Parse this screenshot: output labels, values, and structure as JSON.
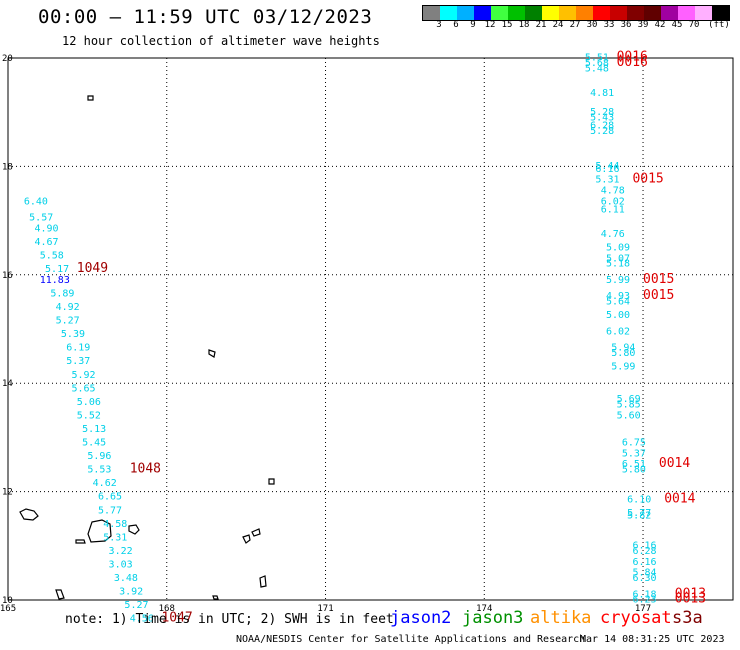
{
  "title": "00:00 — 11:59 UTC 03/12/2023",
  "subtitle": "12 hour collection of altimeter wave heights",
  "legend": {
    "colors": [
      "#808080",
      "#00ffff",
      "#00b0ff",
      "#0000ff",
      "#40ff40",
      "#00c000",
      "#008000",
      "#ffff00",
      "#ffc000",
      "#ff8000",
      "#ff0000",
      "#c80000",
      "#800000",
      "#600000",
      "#a000a0",
      "#ff60ff",
      "#ffb0ff",
      "#000000"
    ],
    "labels": [
      "3",
      "6",
      "9",
      "12",
      "15",
      "18",
      "21",
      "24",
      "27",
      "30",
      "33",
      "36",
      "39",
      "42",
      "45",
      "70",
      "(ft)"
    ]
  },
  "axes": {
    "lon_ticks": [
      "165",
      "168",
      "171",
      "174",
      "177"
    ],
    "lat_ticks": [
      "20",
      "18",
      "16",
      "14",
      "12",
      "10"
    ]
  },
  "note": "note: 1) Time is in UTC; 2) SWH is in feet",
  "satellites": [
    {
      "name": "jason2",
      "color": "#0000ff"
    },
    {
      "name": "jason3",
      "color": "#009000"
    },
    {
      "name": "altika",
      "color": "#ff9000"
    },
    {
      "name": "cryosat",
      "color": "#ff0000"
    },
    {
      "name": "s3a",
      "color": "#800000"
    }
  ],
  "credit": "NOAA/NESDIS Center for Satellite Applications and Research",
  "timestamp": "Mar 14 08:31:25 UTC 2023",
  "colors": {
    "cyan": "#00d0e8",
    "red": "#e00000",
    "darkred": "#a00000",
    "blue": "#0000ff"
  },
  "track_west": [
    {
      "lon": 165.3,
      "lat": 17.3,
      "v": "6.40"
    },
    {
      "lon": 165.4,
      "lat": 17.0,
      "v": "5.57"
    },
    {
      "lon": 165.5,
      "lat": 16.8,
      "v": "4.90"
    },
    {
      "lon": 165.5,
      "lat": 16.55,
      "v": "4.67"
    },
    {
      "lon": 165.6,
      "lat": 16.3,
      "v": "5.58"
    },
    {
      "lon": 165.7,
      "lat": 16.05,
      "v": "5.17"
    },
    {
      "lon": 165.6,
      "lat": 15.85,
      "v": "11.83",
      "c": "blue"
    },
    {
      "lon": 165.8,
      "lat": 15.6,
      "v": "5.89"
    },
    {
      "lon": 165.9,
      "lat": 15.35,
      "v": "4.92"
    },
    {
      "lon": 165.9,
      "lat": 15.1,
      "v": "5.27"
    },
    {
      "lon": 166.0,
      "lat": 14.85,
      "v": "5.39"
    },
    {
      "lon": 166.1,
      "lat": 14.6,
      "v": "6.19"
    },
    {
      "lon": 166.1,
      "lat": 14.35,
      "v": "5.37"
    },
    {
      "lon": 166.2,
      "lat": 14.1,
      "v": "5.92"
    },
    {
      "lon": 166.2,
      "lat": 13.85,
      "v": "5.65"
    },
    {
      "lon": 166.3,
      "lat": 13.6,
      "v": "5.06"
    },
    {
      "lon": 166.3,
      "lat": 13.35,
      "v": "5.52"
    },
    {
      "lon": 166.4,
      "lat": 13.1,
      "v": "5.13"
    },
    {
      "lon": 166.4,
      "lat": 12.85,
      "v": "5.45"
    },
    {
      "lon": 166.5,
      "lat": 12.6,
      "v": "5.96"
    },
    {
      "lon": 166.5,
      "lat": 12.35,
      "v": "5.53"
    },
    {
      "lon": 166.6,
      "lat": 12.1,
      "v": "4.62"
    },
    {
      "lon": 166.7,
      "lat": 11.85,
      "v": "6.65"
    },
    {
      "lon": 166.7,
      "lat": 11.6,
      "v": "5.77"
    },
    {
      "lon": 166.8,
      "lat": 11.35,
      "v": "4.58"
    },
    {
      "lon": 166.8,
      "lat": 11.1,
      "v": "5.31"
    },
    {
      "lon": 166.9,
      "lat": 10.85,
      "v": "3.22"
    },
    {
      "lon": 166.9,
      "lat": 10.6,
      "v": "3.03"
    },
    {
      "lon": 167.0,
      "lat": 10.35,
      "v": "3.48"
    },
    {
      "lon": 167.1,
      "lat": 10.1,
      "v": "3.92"
    },
    {
      "lon": 167.2,
      "lat": 9.85,
      "v": "5.27"
    },
    {
      "lon": 167.3,
      "lat": 9.6,
      "v": "4.56"
    }
  ],
  "track_east": [
    {
      "lon": 175.9,
      "lat": 19.95,
      "v": "5.51"
    },
    {
      "lon": 175.9,
      "lat": 19.85,
      "v": "5.68"
    },
    {
      "lon": 175.9,
      "lat": 19.75,
      "v": "5.48"
    },
    {
      "lon": 176.0,
      "lat": 19.3,
      "v": "4.81"
    },
    {
      "lon": 176.0,
      "lat": 18.95,
      "v": "5.28"
    },
    {
      "lon": 176.0,
      "lat": 18.85,
      "v": "5.43"
    },
    {
      "lon": 176.0,
      "lat": 18.7,
      "v": "6.28"
    },
    {
      "lon": 176.0,
      "lat": 18.6,
      "v": "5.28"
    },
    {
      "lon": 176.1,
      "lat": 17.95,
      "v": "5.44"
    },
    {
      "lon": 176.1,
      "lat": 17.9,
      "v": "6.16"
    },
    {
      "lon": 176.1,
      "lat": 17.7,
      "v": "5.31"
    },
    {
      "lon": 176.2,
      "lat": 17.5,
      "v": "4.78"
    },
    {
      "lon": 176.2,
      "lat": 17.3,
      "v": "6.02"
    },
    {
      "lon": 176.2,
      "lat": 17.15,
      "v": "6.11"
    },
    {
      "lon": 176.2,
      "lat": 16.7,
      "v": "4.76"
    },
    {
      "lon": 176.3,
      "lat": 16.45,
      "v": "5.09"
    },
    {
      "lon": 176.3,
      "lat": 16.25,
      "v": "5.07"
    },
    {
      "lon": 176.3,
      "lat": 16.15,
      "v": "5.18"
    },
    {
      "lon": 176.3,
      "lat": 15.85,
      "v": "5.99"
    },
    {
      "lon": 176.3,
      "lat": 15.55,
      "v": "4.93"
    },
    {
      "lon": 176.3,
      "lat": 15.45,
      "v": "5.64"
    },
    {
      "lon": 176.3,
      "lat": 15.2,
      "v": "5.00"
    },
    {
      "lon": 176.3,
      "lat": 14.9,
      "v": "6.02"
    },
    {
      "lon": 176.4,
      "lat": 14.6,
      "v": "5.94"
    },
    {
      "lon": 176.4,
      "lat": 14.5,
      "v": "5.80"
    },
    {
      "lon": 176.4,
      "lat": 14.25,
      "v": "5.99"
    },
    {
      "lon": 176.5,
      "lat": 13.65,
      "v": "5.69"
    },
    {
      "lon": 176.5,
      "lat": 13.55,
      "v": "5.85"
    },
    {
      "lon": 176.5,
      "lat": 13.35,
      "v": "5.60"
    },
    {
      "lon": 176.6,
      "lat": 12.85,
      "v": "6.75"
    },
    {
      "lon": 176.6,
      "lat": 12.65,
      "v": "5.37"
    },
    {
      "lon": 176.6,
      "lat": 12.45,
      "v": "6.51"
    },
    {
      "lon": 176.6,
      "lat": 12.35,
      "v": "5.80"
    },
    {
      "lon": 176.7,
      "lat": 11.8,
      "v": "6.10"
    },
    {
      "lon": 176.7,
      "lat": 11.55,
      "v": "5.77"
    },
    {
      "lon": 176.7,
      "lat": 11.5,
      "v": "5.82"
    },
    {
      "lon": 176.8,
      "lat": 10.95,
      "v": "6.16"
    },
    {
      "lon": 176.8,
      "lat": 10.85,
      "v": "6.28"
    },
    {
      "lon": 176.8,
      "lat": 10.65,
      "v": "6.16"
    },
    {
      "lon": 176.8,
      "lat": 10.45,
      "v": "5.84"
    },
    {
      "lon": 176.8,
      "lat": 10.35,
      "v": "6.30"
    },
    {
      "lon": 176.8,
      "lat": 10.05,
      "v": "6.18"
    },
    {
      "lon": 176.8,
      "lat": 9.95,
      "v": "6.23"
    }
  ],
  "time_labels": [
    {
      "lon": 176.5,
      "lat": 19.95,
      "v": "0016",
      "c": "red"
    },
    {
      "lon": 176.5,
      "lat": 19.85,
      "v": "0016",
      "c": "red"
    },
    {
      "lon": 176.8,
      "lat": 17.7,
      "v": "0015",
      "c": "red"
    },
    {
      "lon": 177.0,
      "lat": 15.85,
      "v": "0015",
      "c": "red"
    },
    {
      "lon": 177.0,
      "lat": 15.55,
      "v": "0015",
      "c": "red"
    },
    {
      "lon": 177.3,
      "lat": 12.45,
      "v": "0014",
      "c": "red"
    },
    {
      "lon": 177.4,
      "lat": 11.8,
      "v": "0014",
      "c": "red"
    },
    {
      "lon": 177.6,
      "lat": 10.05,
      "v": "0013",
      "c": "red"
    },
    {
      "lon": 177.6,
      "lat": 9.95,
      "v": "0013",
      "c": "red"
    },
    {
      "lon": 166.3,
      "lat": 16.05,
      "v": "1049",
      "c": "darkred"
    },
    {
      "lon": 167.3,
      "lat": 12.35,
      "v": "1048",
      "c": "darkred"
    },
    {
      "lon": 167.9,
      "lat": 9.6,
      "v": "1047",
      "c": "darkred"
    }
  ]
}
